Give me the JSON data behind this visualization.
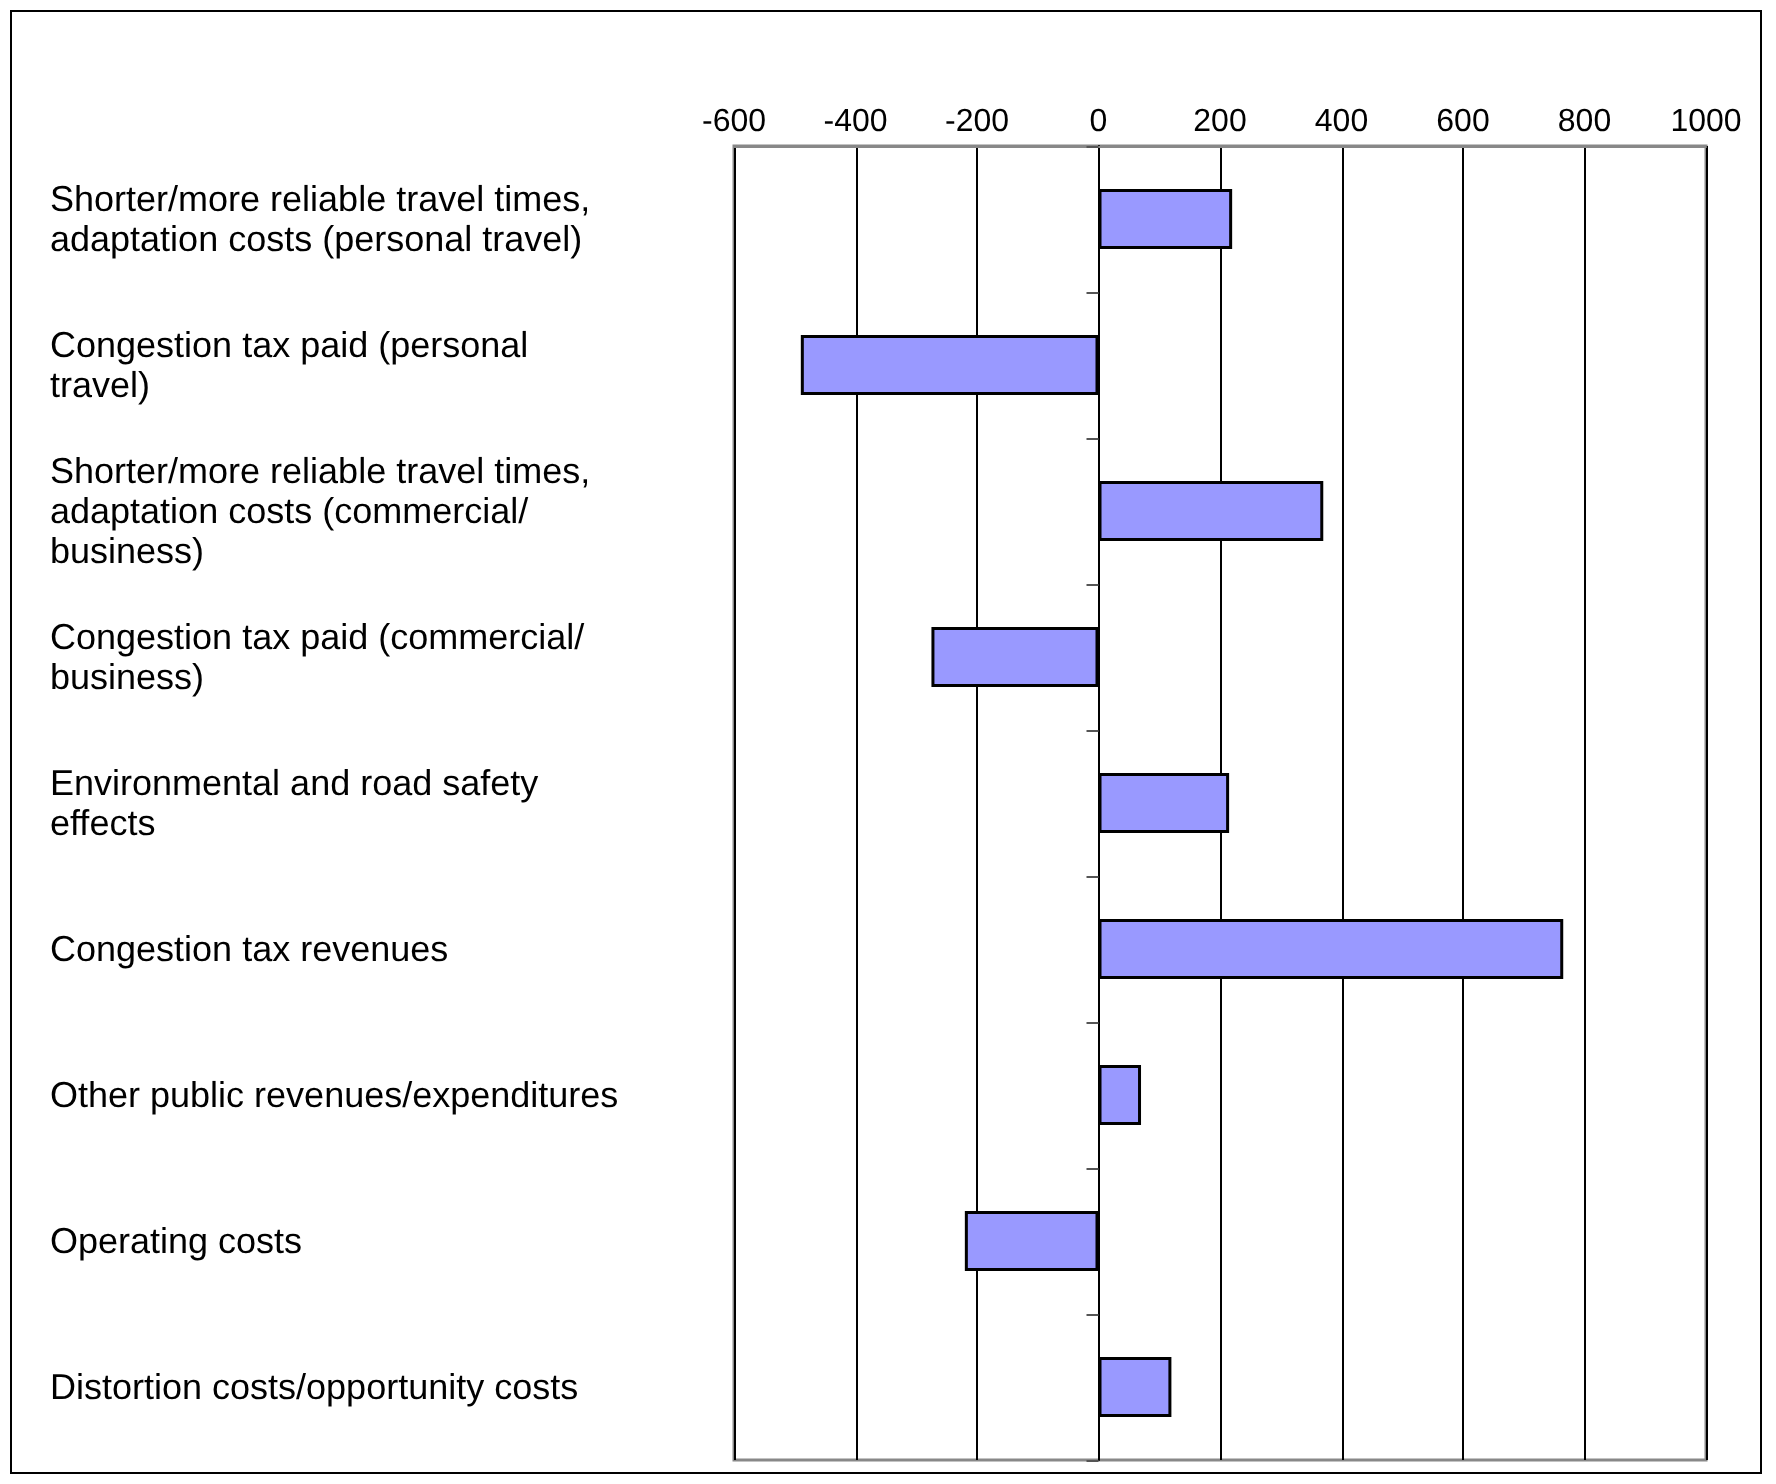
{
  "chart_data": {
    "type": "bar",
    "orientation": "horizontal",
    "categories": [
      "Shorter/more reliable travel times, adaptation costs (personal travel)",
      "Congestion tax paid (personal travel)",
      "Shorter/more reliable travel times, adaptation costs (commercial/business)",
      "Congestion tax paid (commercial/ business)",
      "Environmental and road safety effects",
      "Congestion tax revenues",
      "Other public revenues/expenditures",
      "Operating costs",
      "Distortion costs/opportunity costs"
    ],
    "values": [
      220,
      -490,
      370,
      -275,
      215,
      765,
      70,
      -220,
      120
    ],
    "color": "#9999ff",
    "xlim": [
      -600,
      1000
    ],
    "xticks": [
      -600,
      -400,
      -200,
      0,
      200,
      400,
      600,
      800,
      {
        "value": 1000,
        "label": "1000"
      }
    ],
    "grid": "x"
  }
}
